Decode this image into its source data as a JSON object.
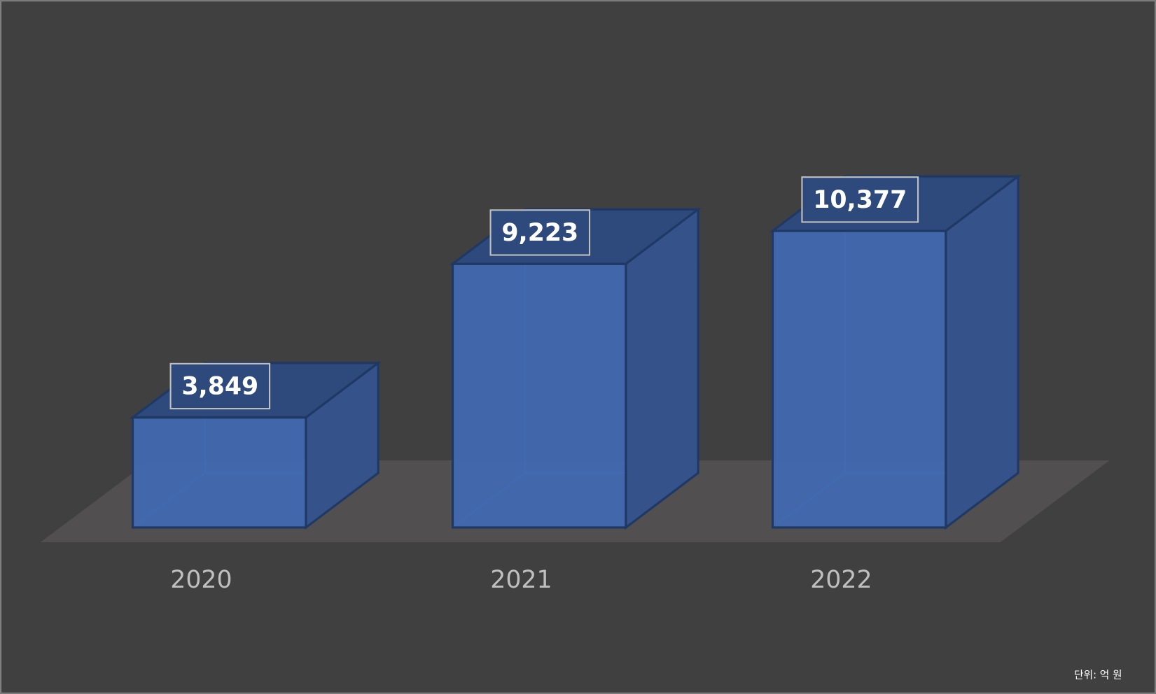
{
  "chart_data": {
    "type": "bar3d",
    "categories": [
      "2020",
      "2021",
      "2022"
    ],
    "values": [
      3849,
      9223,
      10377
    ],
    "value_labels": [
      "3,849",
      "9,223",
      "10,377"
    ],
    "color": "#4169b0",
    "annotation": "단위: 억 원"
  }
}
